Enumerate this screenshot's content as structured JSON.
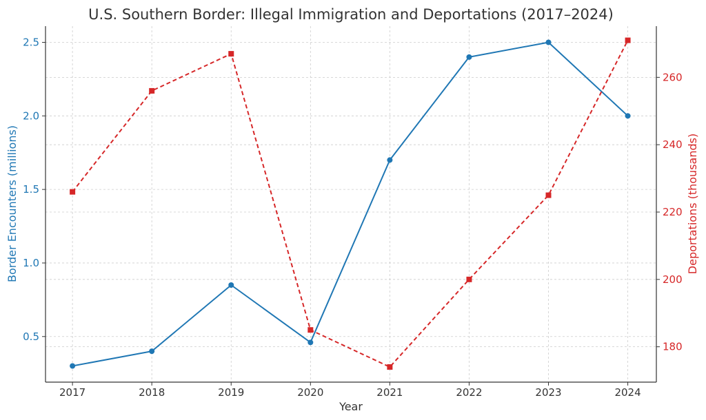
{
  "chart_data": {
    "type": "line",
    "title": "U.S. Southern Border: Illegal Immigration and Deportations (2017–2024)",
    "xlabel": "Year",
    "x": [
      "2017",
      "2018",
      "2019",
      "2020",
      "2021",
      "2022",
      "2023",
      "2024"
    ],
    "grid": true,
    "series": [
      {
        "name": "Border Encounters (millions)",
        "axis": "left",
        "values": [
          0.3,
          0.4,
          0.85,
          0.46,
          1.7,
          2.4,
          2.5,
          2.0
        ],
        "color": "#1f77b4",
        "line_style": "solid",
        "marker": "circle"
      },
      {
        "name": "Deportations (thousands)",
        "axis": "right",
        "values": [
          226,
          256,
          267,
          185,
          174,
          200,
          225,
          271
        ],
        "color": "#d62728",
        "line_style": "dashed",
        "marker": "square"
      }
    ],
    "y_left": {
      "label": "Border Encounters (millions)",
      "ticks": [
        "0.5",
        "1.0",
        "1.5",
        "2.0",
        "2.5"
      ],
      "tick_values": [
        0.5,
        1.0,
        1.5,
        2.0,
        2.5
      ],
      "range": [
        0.19,
        2.61
      ],
      "color": "#1f77b4"
    },
    "y_right": {
      "label": "Deportations (thousands)",
      "ticks": [
        "180",
        "200",
        "220",
        "240",
        "260"
      ],
      "tick_values": [
        180,
        200,
        220,
        240,
        260
      ],
      "range": [
        169.5,
        275.2
      ],
      "color": "#d62728"
    },
    "x_range": [
      2016.66,
      2024.36
    ],
    "grid_color": "#cccccc",
    "axis_color": "#333333",
    "text_color": "#333333"
  }
}
